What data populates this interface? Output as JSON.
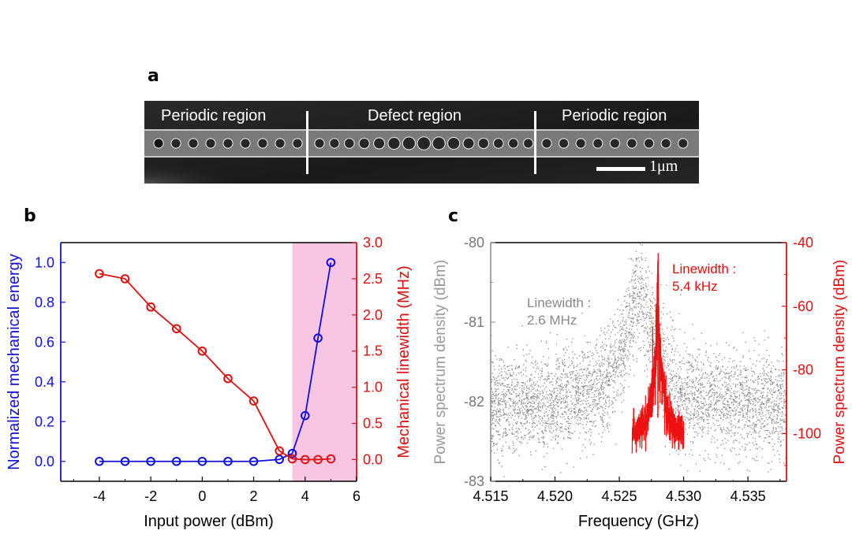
{
  "figure": {
    "panel_a": {
      "label": "a",
      "regions": [
        "Periodic region",
        "Defect region",
        "Periodic region"
      ],
      "scale_bar": "1μm"
    },
    "panel_b": {
      "label": "b"
    },
    "panel_c": {
      "label": "c"
    }
  },
  "chart_data": [
    {
      "id": "b",
      "type": "line",
      "xlabel": "Input power (dBm)",
      "xlim": [
        -5.5,
        6
      ],
      "xticks": [
        "-4",
        "-2",
        "0",
        "2",
        "4",
        "6"
      ],
      "left_axis": {
        "label": "Normalized mechanical energy",
        "color": "#1010e0",
        "ylim": [
          -0.1,
          1.1
        ],
        "ticks": [
          "0.0",
          "0.2",
          "0.4",
          "0.6",
          "0.8",
          "1.0"
        ]
      },
      "right_axis": {
        "label": "Mechanical linewidth (MHz)",
        "color": "#e01010",
        "ylim": [
          -0.3,
          3.0
        ],
        "ticks": [
          "0.0",
          "0.5",
          "1.0",
          "1.5",
          "2.0",
          "2.5",
          "3.0"
        ]
      },
      "series": [
        {
          "name": "Normalized mechanical energy",
          "axis": "left",
          "x": [
            -4,
            -3,
            -2,
            -1,
            0,
            1,
            2,
            3,
            3.5,
            4,
            4.5,
            5
          ],
          "y": [
            0,
            0,
            0,
            0,
            0,
            0,
            0,
            0.01,
            0.04,
            0.23,
            0.62,
            1.0
          ]
        },
        {
          "name": "Mechanical linewidth",
          "axis": "right",
          "x": [
            -4,
            -3,
            -2,
            -1,
            0,
            1,
            2,
            3,
            3.5,
            4,
            4.5,
            5
          ],
          "y": [
            2.57,
            2.5,
            2.11,
            1.81,
            1.5,
            1.12,
            0.81,
            0.12,
            0.01,
            0.0,
            0.0,
            0.01
          ]
        }
      ],
      "shaded_region": {
        "x": [
          3.5,
          6
        ],
        "color": "#f8c6e2"
      }
    },
    {
      "id": "c",
      "type": "scatter",
      "xlabel": "Frequency (GHz)",
      "xlim": [
        4.515,
        4.538
      ],
      "xticks": [
        "4.515",
        "4.520",
        "4.525",
        "4.530",
        "4.535"
      ],
      "left_axis": {
        "label": "Power spectrum density (dBm)",
        "color": "#999999",
        "ylim": [
          -83,
          -80
        ],
        "ticks": [
          "-80",
          "-81",
          "-82",
          "-83"
        ]
      },
      "right_axis": {
        "label": "Power spectrum density (dBm)",
        "color": "#e01010",
        "ylim": [
          -115,
          -40
        ],
        "ticks": [
          "-40",
          "-60",
          "-80",
          "-100"
        ]
      },
      "series": [
        {
          "name": "Gray spectrum",
          "axis": "left",
          "color": "#888888",
          "peak_center": 4.5265,
          "linewidth_ghz": 0.0026,
          "baseline": -82.05,
          "peak_value": -80.65,
          "noise": 0.32
        },
        {
          "name": "Red spectrum",
          "axis": "right",
          "color": "#ee1111",
          "x_range": [
            4.526,
            4.53
          ],
          "peak_center": 4.528,
          "peak_value": -47,
          "baseline": -100,
          "linewidth_khz": 5.4
        }
      ],
      "annotations": [
        {
          "text": [
            "Linewidth :",
            "2.6 MHz"
          ],
          "color": "#888888"
        },
        {
          "text": [
            "Linewidth :",
            "5.4 kHz"
          ],
          "color": "#e01010"
        }
      ]
    }
  ]
}
